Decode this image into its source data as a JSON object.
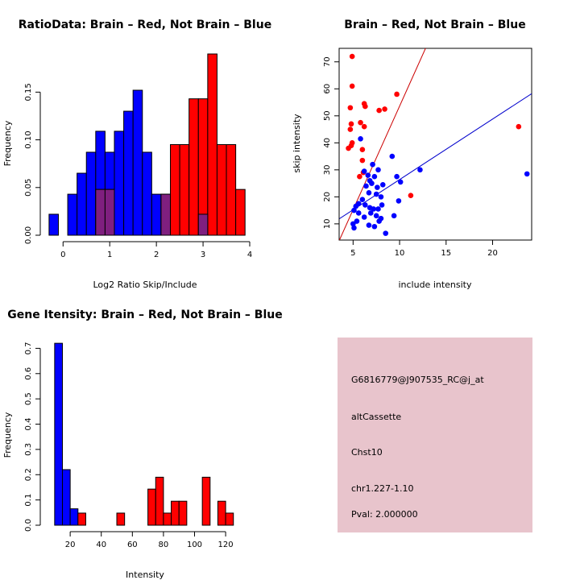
{
  "chart_data": [
    {
      "type": "bar",
      "title": "RatioData: Brain – Red, Not Brain – Blue",
      "xlabel": "Log2 Ratio Skip/Include",
      "ylabel": "Frequency",
      "xlim": [
        -0.35,
        4.0
      ],
      "ylim": [
        0,
        0.19
      ],
      "xticks": [
        "0",
        "1",
        "2",
        "3",
        "4"
      ],
      "xtick_values": [
        0,
        1,
        2,
        3,
        4
      ],
      "yticks": [
        "0.00",
        "0.05",
        "0.10",
        "0.15"
      ],
      "ytick_values": [
        0,
        0.05,
        0.1,
        0.15
      ],
      "series": [
        {
          "name": "Not Brain",
          "color": "#0000ff",
          "bins": [
            [
              -0.3,
              -0.1,
              0.022
            ],
            [
              0.1,
              0.3,
              0.043
            ],
            [
              0.3,
              0.5,
              0.065
            ],
            [
              0.5,
              0.7,
              0.087
            ],
            [
              0.7,
              0.9,
              0.109
            ],
            [
              0.9,
              1.1,
              0.087
            ],
            [
              1.1,
              1.3,
              0.109
            ],
            [
              1.3,
              1.5,
              0.13
            ],
            [
              1.5,
              1.7,
              0.152
            ],
            [
              1.7,
              1.9,
              0.087
            ],
            [
              1.9,
              2.1,
              0.043
            ],
            [
              2.1,
              2.3,
              0.043
            ]
          ]
        },
        {
          "name": "Brain",
          "color": "#ff0000",
          "bins": [
            [
              0.7,
              0.9,
              0.048
            ],
            [
              0.9,
              1.1,
              0.048
            ],
            [
              2.1,
              2.3,
              0.043
            ],
            [
              2.3,
              2.5,
              0.095
            ],
            [
              2.5,
              2.7,
              0.095
            ],
            [
              2.7,
              2.9,
              0.143
            ],
            [
              2.9,
              3.1,
              0.143
            ],
            [
              3.1,
              3.3,
              0.19
            ],
            [
              3.3,
              3.5,
              0.095
            ],
            [
              3.5,
              3.7,
              0.095
            ],
            [
              3.7,
              3.9,
              0.048
            ]
          ]
        },
        {
          "name": "Overlap",
          "color": "#7f1f7f",
          "bins": [
            [
              0.7,
              0.9,
              0.048
            ],
            [
              0.9,
              1.1,
              0.048
            ],
            [
              2.1,
              2.3,
              0.043
            ],
            [
              2.9,
              3.1,
              0.022
            ]
          ]
        }
      ]
    },
    {
      "type": "scatter",
      "title": "Brain – Red, Not Brain – Blue",
      "xlabel": "include intensity",
      "ylabel": "skip intensity",
      "xlim": [
        3.5,
        24.2
      ],
      "ylim": [
        4,
        75
      ],
      "xticks": [
        "5",
        "10",
        "15",
        "20"
      ],
      "xtick_values": [
        5,
        10,
        15,
        20
      ],
      "yticks": [
        "10",
        "20",
        "30",
        "40",
        "50",
        "60",
        "70"
      ],
      "ytick_values": [
        10,
        20,
        30,
        40,
        50,
        60,
        70
      ],
      "series": [
        {
          "name": "Brain",
          "color": "#ff0000",
          "points": [
            [
              4.9,
              72
            ],
            [
              4.9,
              61
            ],
            [
              4.7,
              53
            ],
            [
              6.2,
              54.5
            ],
            [
              6.3,
              53.5
            ],
            [
              9.7,
              58
            ],
            [
              4.8,
              47
            ],
            [
              4.7,
              45
            ],
            [
              6.2,
              46
            ],
            [
              5.8,
              47.5
            ],
            [
              7.8,
              52
            ],
            [
              8.4,
              52.5
            ],
            [
              4.9,
              40
            ],
            [
              4.5,
              38
            ],
            [
              4.8,
              39
            ],
            [
              6.0,
              37.5
            ],
            [
              6.0,
              33.5
            ],
            [
              5.7,
              27.5
            ],
            [
              6.1,
              29
            ],
            [
              11.2,
              20.5
            ],
            [
              22.8,
              46
            ]
          ]
        },
        {
          "name": "Not Brain",
          "color": "#0000ff",
          "points": [
            [
              5.8,
              41.5
            ],
            [
              9.2,
              35
            ],
            [
              7.1,
              32
            ],
            [
              12.2,
              30
            ],
            [
              23.7,
              28.5
            ],
            [
              6.2,
              29.5
            ],
            [
              6.6,
              28
            ],
            [
              7.7,
              30
            ],
            [
              6.8,
              26
            ],
            [
              7.3,
              27.5
            ],
            [
              9.7,
              27.5
            ],
            [
              7.0,
              25
            ],
            [
              6.4,
              24
            ],
            [
              8.2,
              24.5
            ],
            [
              10.1,
              25.5
            ],
            [
              7.6,
              23.5
            ],
            [
              6.7,
              21.5
            ],
            [
              7.5,
              21
            ],
            [
              8.0,
              20
            ],
            [
              6.0,
              19
            ],
            [
              5.6,
              17.5
            ],
            [
              6.3,
              17
            ],
            [
              6.8,
              16
            ],
            [
              7.2,
              15.5
            ],
            [
              7.7,
              15.5
            ],
            [
              8.1,
              17
            ],
            [
              5.3,
              16.5
            ],
            [
              5.1,
              15
            ],
            [
              5.6,
              14
            ],
            [
              6.9,
              14
            ],
            [
              7.5,
              13
            ],
            [
              9.4,
              13
            ],
            [
              6.2,
              12.5
            ],
            [
              8.0,
              12
            ],
            [
              5.4,
              11
            ],
            [
              5.0,
              10
            ],
            [
              6.7,
              9.5
            ],
            [
              7.3,
              9
            ],
            [
              5.1,
              8.5
            ],
            [
              8.5,
              6.5
            ],
            [
              9.9,
              18.5
            ],
            [
              7.8,
              11
            ]
          ]
        }
      ],
      "lines": [
        {
          "color": "#cc0000",
          "intercept": -23.1,
          "slope": 7.67
        },
        {
          "color": "#0000cc",
          "intercept": 4.0,
          "slope": 2.24
        }
      ]
    },
    {
      "type": "bar",
      "title": "Gene Itensity: Brain – Red, Not Brain – Blue",
      "xlabel": "Intensity",
      "ylabel": "Frequency",
      "xlim": [
        4.9,
        135.5
      ],
      "ylim": [
        0,
        0.73
      ],
      "xticks": [
        "20",
        "40",
        "60",
        "80",
        "100",
        "120"
      ],
      "xtick_values": [
        20,
        40,
        60,
        80,
        100,
        120
      ],
      "yticks": [
        "0.0",
        "0.1",
        "0.2",
        "0.3",
        "0.4",
        "0.5",
        "0.6",
        "0.7"
      ],
      "ytick_values": [
        0,
        0.1,
        0.2,
        0.3,
        0.4,
        0.5,
        0.6,
        0.7
      ],
      "series": [
        {
          "name": "Not Brain",
          "color": "#0000ff",
          "bins": [
            [
              10,
              15,
              0.72
            ],
            [
              15,
              20,
              0.22
            ],
            [
              20,
              25,
              0.065
            ]
          ]
        },
        {
          "name": "Brain",
          "color": "#ff0000",
          "bins": [
            [
              25,
              30,
              0.048
            ],
            [
              50,
              55,
              0.048
            ],
            [
              70,
              75,
              0.143
            ],
            [
              75,
              80,
              0.19
            ],
            [
              80,
              85,
              0.048
            ],
            [
              85,
              90,
              0.095
            ],
            [
              90,
              95,
              0.095
            ],
            [
              105,
              110,
              0.19
            ],
            [
              115,
              120,
              0.095
            ],
            [
              120,
              125,
              0.048
            ]
          ]
        }
      ]
    }
  ],
  "info_box": {
    "probe": "G6816779@J907535_RC@j_at",
    "event_type": "altCassette",
    "gene": "Chst10",
    "location": "chr1.227-1.10",
    "pval": "Pval: 2.000000",
    "bg_color": "#e8c4cc",
    "pval_color": "#8b0000"
  }
}
